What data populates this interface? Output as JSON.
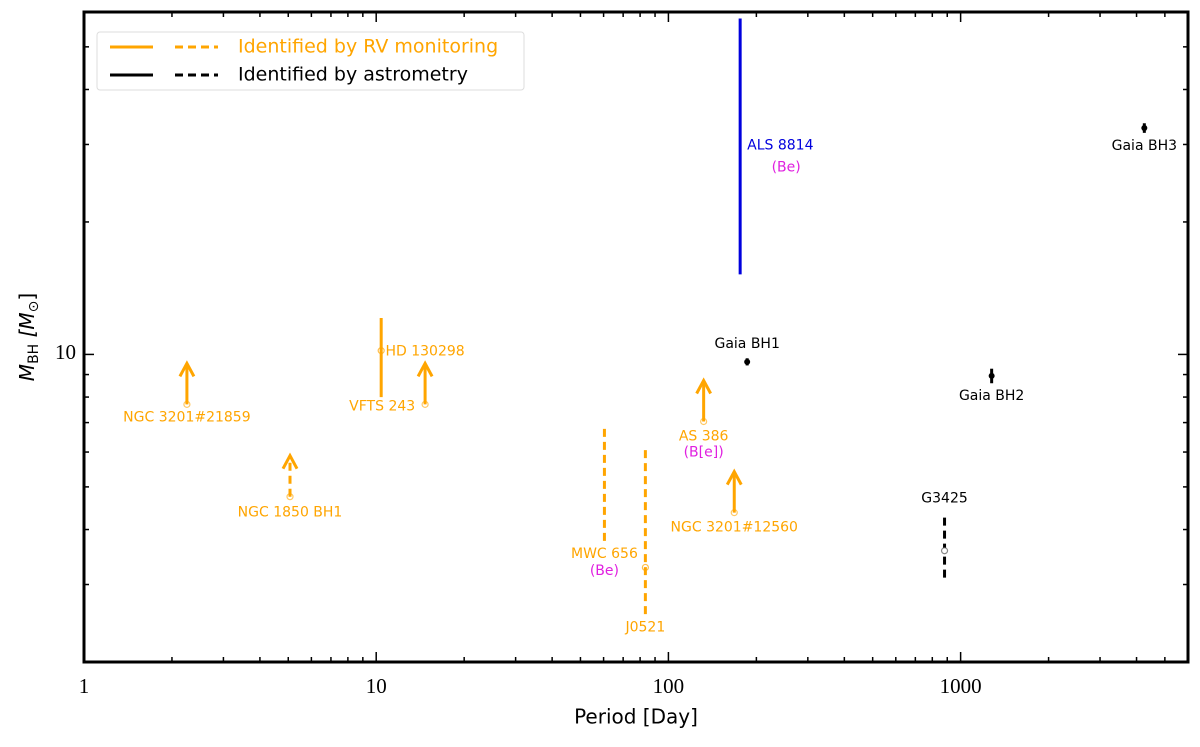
{
  "chart_data": {
    "type": "scatter",
    "xlabel": "Period [Day]",
    "ylabel_parts": [
      {
        "text": "M"
      },
      {
        "text": "BH",
        "sub": true
      },
      {
        "text": " [M"
      },
      {
        "text": "⊙",
        "sub": true
      },
      {
        "text": "]"
      }
    ],
    "xscale": "log",
    "yscale": "log",
    "xlim": [
      1,
      6000
    ],
    "ylim": [
      2,
      60
    ],
    "xticks": [
      1,
      10,
      100,
      1000
    ],
    "xminor_ticks": [
      2,
      3,
      4,
      5,
      6,
      7,
      8,
      9,
      20,
      30,
      40,
      50,
      60,
      70,
      80,
      90,
      200,
      300,
      400,
      500,
      600,
      700,
      800,
      900,
      2000,
      3000,
      4000,
      5000
    ],
    "yticks": [
      10
    ],
    "yminor_ticks": [
      3,
      4,
      5,
      6,
      7,
      8,
      9,
      20,
      30,
      40,
      50
    ],
    "legend_loc": "upper left",
    "legend": [
      {
        "label": "Identified by RV monitoring",
        "color": "#ffa500"
      },
      {
        "label": "Identified by astrometry",
        "color": "#000000"
      }
    ],
    "note_color": "#e020e0",
    "objects": [
      {
        "label": "NGC 3201#21859",
        "kind": "limit",
        "period": 2.25,
        "mass": 7.7,
        "color": "#ffa500",
        "dashed": false
      },
      {
        "label": "NGC 1850 BH1",
        "kind": "limit",
        "period": 5.07,
        "mass": 4.75,
        "color": "#ffa500",
        "dashed": true
      },
      {
        "label": "VFTS 243",
        "kind": "range",
        "period": 10.4,
        "mass": 10.2,
        "lower": 8.0,
        "upper": 12.1,
        "color": "#ffa500",
        "dashed": false
      },
      {
        "label": "HD 130298",
        "kind": "limit",
        "period": 14.7,
        "mass": 7.7,
        "color": "#ffa500",
        "dashed": false
      },
      {
        "label": "MWC 656",
        "note": "(Be)",
        "kind": "range",
        "period": 60.4,
        "lower": 3.77,
        "upper": 6.9,
        "color": "#ffa500",
        "dashed": true
      },
      {
        "label": "J0521",
        "kind": "range",
        "period": 83.4,
        "mass": 3.28,
        "lower": 2.57,
        "upper": 6.08,
        "color": "#ffa500",
        "dashed": true
      },
      {
        "label": "AS 386",
        "note": "(B[e])",
        "kind": "limit",
        "period": 132,
        "mass": 7.04,
        "color": "#ffa500",
        "dashed": false
      },
      {
        "label": "NGC 3201#12560",
        "kind": "limit",
        "period": 168,
        "mass": 4.37,
        "color": "#ffa500",
        "dashed": false
      },
      {
        "label": "ALS 8814",
        "note": "(Be)",
        "kind": "range",
        "period": 176,
        "lower": 15.2,
        "upper": 58,
        "color": "#0000dd",
        "dashed": false
      },
      {
        "label": "Gaia BH1",
        "kind": "point",
        "period": 186,
        "mass": 9.62,
        "mass_err": 0.18,
        "color": "#000000",
        "dashed": false
      },
      {
        "label": "Gaia BH2",
        "kind": "point",
        "period": 1277,
        "mass": 8.94,
        "mass_err": 0.34,
        "color": "#000000",
        "dashed": false
      },
      {
        "label": "Gaia BH3",
        "kind": "point",
        "period": 4253,
        "mass": 32.7,
        "mass_err": 0.82,
        "color": "#000000",
        "dashed": false
      },
      {
        "label": "G3425",
        "kind": "range",
        "period": 881,
        "mass": 3.58,
        "lower": 3.11,
        "upper": 4.29,
        "color": "#000000",
        "dashed": true
      }
    ]
  }
}
